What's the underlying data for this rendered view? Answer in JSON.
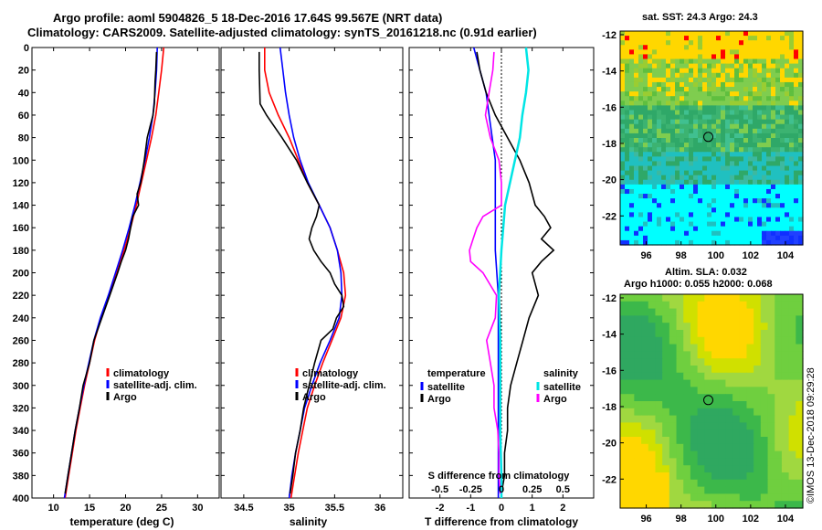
{
  "header": {
    "line1": "Argo profile: aoml 5904826_5 18-Dec-2016 17.64S 99.567E (NRT data)",
    "line2": "Climatology: CARS2009. Satellite-adjusted climatology: synTS_20161218.nc (0.91d earlier)"
  },
  "maps": {
    "sst_title": "sat. SST: 24.3 Argo: 24.3",
    "sla_title1": "Altim. SLA: 0.032",
    "sla_title2": "Argo h1000: 0.055 h2000: 0.068",
    "profile_marker": {
      "lon": 99.567,
      "lat": -17.64
    }
  },
  "watermark": "©IMOS 13-Dec-2018 09:29:28",
  "colors": {
    "climatology": "#ff0000",
    "satellite": "#0000ff",
    "argo": "#000000",
    "sat_salinity": "#00e5e5",
    "argo_salinity": "#ff00ff"
  },
  "chart_data": [
    {
      "type": "line",
      "name": "temperature-profile",
      "xlabel": "temperature (deg C)",
      "xlim": [
        7,
        33
      ],
      "ylim": [
        400,
        0
      ],
      "xticks": [
        10,
        15,
        20,
        25,
        30
      ],
      "yticks": [
        0,
        20,
        40,
        60,
        80,
        100,
        120,
        140,
        160,
        180,
        200,
        220,
        240,
        260,
        280,
        300,
        320,
        340,
        360,
        380,
        400
      ],
      "legend": [
        "climatology",
        "satellite-adj. clim.",
        "Argo"
      ],
      "series": [
        {
          "name": "climatology",
          "color": "#ff0000",
          "depth": [
            0,
            20,
            40,
            60,
            80,
            100,
            120,
            140,
            160,
            180,
            200,
            220,
            240,
            260,
            280,
            300,
            320,
            340,
            360,
            380,
            400
          ],
          "values": [
            25.3,
            25.0,
            24.6,
            24.2,
            23.6,
            22.9,
            22.2,
            21.5,
            20.7,
            19.8,
            18.8,
            17.7,
            16.6,
            15.7,
            15.0,
            14.3,
            13.7,
            13.1,
            12.6,
            12.1,
            11.6
          ]
        },
        {
          "name": "satellite-adj. clim.",
          "color": "#0000ff",
          "depth": [
            0,
            20,
            40,
            60,
            80,
            100,
            120,
            140,
            160,
            180,
            200,
            220,
            240,
            260,
            280,
            300,
            320,
            340,
            360,
            380,
            400
          ],
          "values": [
            24.4,
            24.3,
            24.1,
            23.8,
            23.3,
            22.7,
            22.0,
            21.3,
            20.5,
            19.6,
            18.6,
            17.6,
            16.5,
            15.6,
            14.9,
            14.2,
            13.6,
            13.0,
            12.5,
            12.0,
            11.5
          ]
        },
        {
          "name": "Argo",
          "color": "#000000",
          "depth": [
            4,
            20,
            30,
            50,
            60,
            70,
            80,
            100,
            120,
            130,
            140,
            150,
            160,
            170,
            180,
            190,
            200,
            220,
            240,
            260,
            280,
            300,
            320,
            340,
            360,
            380,
            396
          ],
          "values": [
            24.3,
            24.2,
            24.1,
            24.0,
            23.8,
            23.4,
            23.0,
            22.6,
            22.1,
            21.6,
            21.8,
            21.0,
            20.7,
            20.4,
            20.0,
            19.4,
            18.9,
            17.8,
            16.7,
            15.6,
            15.0,
            14.1,
            13.6,
            13.0,
            12.5,
            12.0,
            11.6
          ]
        }
      ]
    },
    {
      "type": "line",
      "name": "salinity-profile",
      "xlabel": "salinity",
      "xlim": [
        34.25,
        36.25
      ],
      "ylim": [
        400,
        0
      ],
      "xticks": [
        34.5,
        35,
        35.5,
        36
      ],
      "legend": [
        "climatology",
        "satellite-adj. clim.",
        "Argo"
      ],
      "series": [
        {
          "name": "climatology",
          "color": "#ff0000",
          "depth": [
            0,
            20,
            40,
            60,
            80,
            100,
            120,
            140,
            160,
            180,
            200,
            220,
            240,
            260,
            280,
            300,
            320,
            340,
            360,
            380,
            400
          ],
          "values": [
            34.73,
            34.73,
            34.78,
            34.88,
            35.0,
            35.1,
            35.2,
            35.33,
            35.45,
            35.53,
            35.6,
            35.62,
            35.57,
            35.47,
            35.37,
            35.28,
            35.2,
            35.15,
            35.1,
            35.06,
            35.02
          ]
        },
        {
          "name": "satellite-adj. clim.",
          "color": "#0000ff",
          "depth": [
            0,
            20,
            40,
            60,
            80,
            100,
            120,
            140,
            160,
            180,
            200,
            220,
            240,
            260,
            280,
            300,
            320,
            340,
            360,
            380,
            400
          ],
          "values": [
            34.9,
            34.93,
            34.96,
            35.0,
            35.05,
            35.12,
            35.21,
            35.33,
            35.45,
            35.53,
            35.57,
            35.58,
            35.55,
            35.45,
            35.34,
            35.25,
            35.17,
            35.12,
            35.07,
            35.03,
            35.0
          ]
        },
        {
          "name": "Argo",
          "color": "#000000",
          "depth": [
            4,
            20,
            50,
            60,
            80,
            100,
            120,
            140,
            150,
            160,
            170,
            180,
            190,
            200,
            210,
            220,
            230,
            240,
            250,
            260,
            280,
            300,
            320,
            340,
            360,
            380,
            396
          ],
          "values": [
            34.67,
            34.67,
            34.68,
            34.75,
            34.92,
            35.08,
            35.2,
            35.33,
            35.3,
            35.25,
            35.22,
            35.27,
            35.35,
            35.45,
            35.5,
            35.58,
            35.6,
            35.52,
            35.48,
            35.35,
            35.28,
            35.22,
            35.16,
            35.12,
            35.07,
            35.04,
            35.01
          ]
        }
      ]
    },
    {
      "type": "line",
      "name": "difference-profile",
      "xlabel": "T difference from climatology",
      "xlabel_top": "S difference from climatology",
      "xlim": [
        -3,
        3
      ],
      "ylim": [
        400,
        0
      ],
      "xticks": [
        -2,
        -1,
        0,
        1,
        2
      ],
      "xticks_top": [
        -0.5,
        -0.25,
        0,
        0.25,
        0.5
      ],
      "legend_temperature": [
        "temperature",
        "satellite",
        "Argo"
      ],
      "legend_salinity": [
        "salinity",
        "satellite",
        "Argo"
      ],
      "series": [
        {
          "name": "temperature satellite",
          "color": "#0000ff",
          "depth": [
            0,
            20,
            40,
            60,
            80,
            100,
            140,
            180,
            220,
            260,
            300,
            340,
            380,
            400
          ],
          "values": [
            -0.9,
            -0.7,
            -0.5,
            -0.4,
            -0.3,
            -0.2,
            -0.2,
            -0.2,
            -0.1,
            -0.1,
            -0.1,
            -0.1,
            -0.1,
            -0.1
          ]
        },
        {
          "name": "temperature Argo",
          "color": "#000000",
          "depth": [
            4,
            20,
            40,
            60,
            80,
            100,
            120,
            140,
            150,
            160,
            170,
            180,
            190,
            200,
            220,
            240,
            260,
            280,
            300,
            320,
            340,
            360,
            380,
            396
          ],
          "values": [
            -0.8,
            -0.7,
            -0.5,
            -0.2,
            0.2,
            0.6,
            0.9,
            1.1,
            1.4,
            1.6,
            1.3,
            1.7,
            1.3,
            1.0,
            1.2,
            0.9,
            0.7,
            0.5,
            0.3,
            0.2,
            0.2,
            0.1,
            0.1,
            0.0
          ]
        },
        {
          "name": "salinity satellite",
          "color": "#00e5e5",
          "depth": [
            0,
            20,
            40,
            60,
            80,
            100,
            140,
            180,
            220,
            260,
            300,
            340,
            380,
            400
          ],
          "values": [
            0.2,
            0.22,
            0.2,
            0.17,
            0.15,
            0.11,
            0.03,
            0.0,
            -0.02,
            -0.01,
            -0.01,
            -0.01,
            0.0,
            0.0
          ]
        },
        {
          "name": "salinity Argo",
          "color": "#ff00ff",
          "depth": [
            4,
            20,
            40,
            60,
            80,
            100,
            120,
            140,
            150,
            160,
            170,
            180,
            190,
            200,
            220,
            240,
            260,
            280,
            300,
            320,
            340,
            360,
            380,
            396
          ],
          "values": [
            -0.06,
            -0.07,
            -0.1,
            -0.13,
            -0.09,
            -0.02,
            0.0,
            0.0,
            -0.15,
            -0.2,
            -0.23,
            -0.26,
            -0.25,
            -0.15,
            -0.04,
            -0.05,
            -0.12,
            -0.09,
            -0.06,
            -0.06,
            -0.03,
            -0.02,
            -0.02,
            -0.01
          ]
        }
      ]
    },
    {
      "type": "heatmap",
      "name": "sst-map",
      "title": "sat. SST: 24.3 Argo: 24.3",
      "xlim": [
        94.5,
        105
      ],
      "ylim": [
        -23.6,
        -11.8
      ],
      "xticks": [
        96,
        98,
        100,
        102,
        104
      ],
      "yticks": [
        -12,
        -14,
        -16,
        -18,
        -20,
        -22
      ]
    },
    {
      "type": "heatmap",
      "name": "sla-map",
      "title": "Altim. SLA: 0.032",
      "xlim": [
        94.5,
        105
      ],
      "ylim": [
        -23.6,
        -11.8
      ],
      "xticks": [
        96,
        98,
        100,
        102,
        104
      ],
      "yticks": [
        -12,
        -14,
        -16,
        -18,
        -20,
        -22
      ]
    }
  ]
}
